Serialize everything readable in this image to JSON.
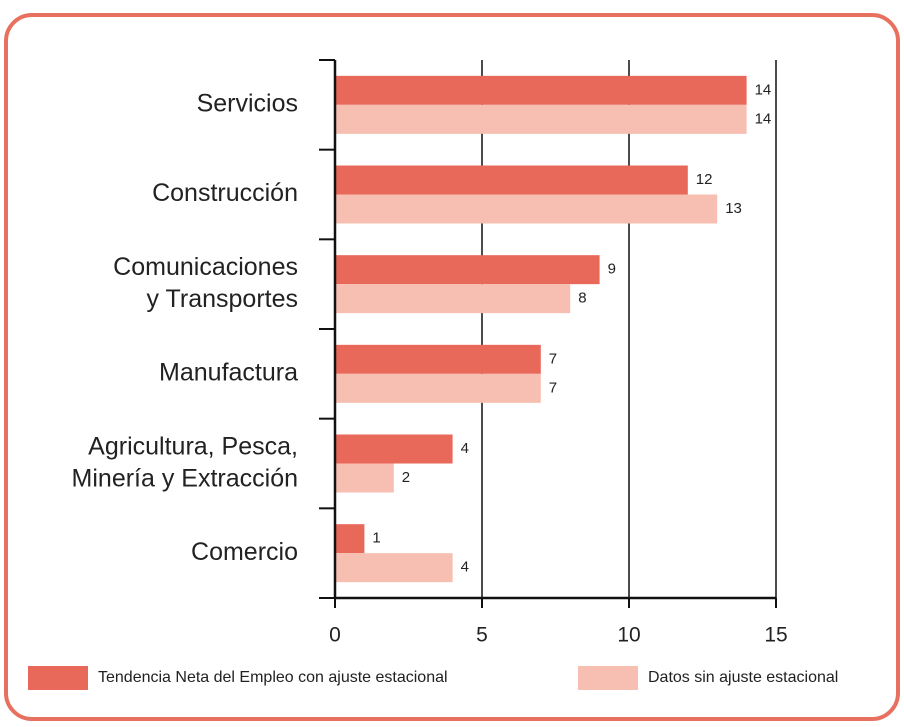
{
  "chart_data": {
    "type": "bar",
    "orientation": "horizontal",
    "categories": [
      "Servicios",
      "Construcción",
      "Comunicaciones\ny Transportes",
      "Manufactura",
      "Agricultura, Pesca,\nMinería y Extracción",
      "Comercio"
    ],
    "series": [
      {
        "name": "Tendencia Neta del Empleo con ajuste estacional",
        "color": "#e8695a",
        "values": [
          14,
          12,
          9,
          7,
          4,
          1
        ]
      },
      {
        "name": "Datos sin ajuste estacional",
        "color": "#f6bfb1",
        "values": [
          14,
          13,
          8,
          7,
          2,
          4
        ]
      }
    ],
    "xlim": [
      0,
      15
    ],
    "xticks": [
      0,
      5,
      10,
      15
    ],
    "grid": true,
    "legend": "bottom"
  }
}
